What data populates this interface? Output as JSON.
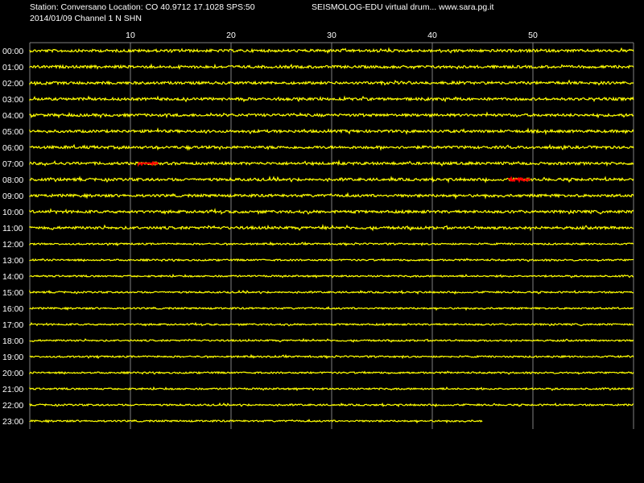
{
  "header": {
    "station_line": "Station: Conversano Location: CO 40.9712 17.1028 SPS:50",
    "title": "SEISMOLOG-EDU virtual drum... www.sara.pg.it",
    "date_channel": "2014/01/09  Channel 1 N SHN"
  },
  "minute_ticks": [
    "10",
    "20",
    "30",
    "40",
    "50"
  ],
  "hours": [
    "00:00",
    "01:00",
    "02:00",
    "03:00",
    "04:00",
    "05:00",
    "06:00",
    "07:00",
    "08:00",
    "09:00",
    "10:00",
    "11:00",
    "12:00",
    "13:00",
    "14:00",
    "15:00",
    "16:00",
    "17:00",
    "18:00",
    "19:00",
    "20:00",
    "21:00",
    "22:00",
    "23:00"
  ],
  "colors": {
    "background": "#000000",
    "trace": "#ffff00",
    "event": "#ff0000",
    "grid": "#808080",
    "text": "#ffffff"
  },
  "traces": {
    "last_hour_end_minute": 45,
    "events": [
      {
        "hour": "07:00",
        "start_minute": 10.8,
        "end_minute": 12.8
      },
      {
        "hour": "08:00",
        "start_minute": 47.6,
        "end_minute": 49.8
      }
    ]
  }
}
